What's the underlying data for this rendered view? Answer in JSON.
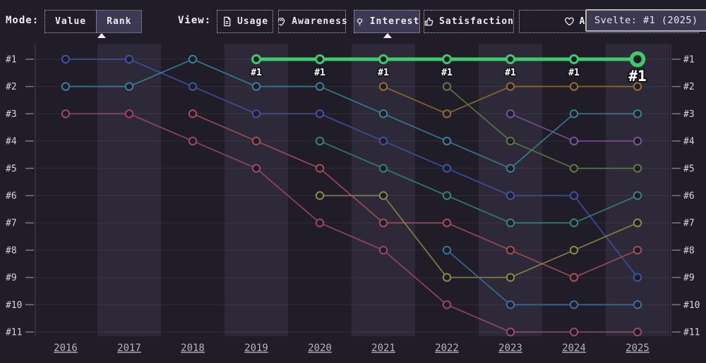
{
  "toolbar": {
    "mode_label": "Mode:",
    "modes": [
      {
        "label": "Value",
        "selected": false
      },
      {
        "label": "Rank",
        "selected": true
      }
    ],
    "view_label": "View:",
    "views": [
      {
        "label": "Usage",
        "icon": "document-icon",
        "selected": false
      },
      {
        "label": "Awareness",
        "icon": "ear-icon",
        "selected": false
      },
      {
        "label": "Interest",
        "icon": "bulb-icon",
        "selected": true
      },
      {
        "label": "Satisfaction",
        "icon": "thumbs-up-icon",
        "selected": false
      },
      {
        "label": "Appreciation",
        "icon": "heart-icon",
        "selected": false
      }
    ]
  },
  "tooltip": {
    "text": "Svelte: #1 (2025)"
  },
  "colors": {
    "background": "#201c28",
    "band": "rgba(165,160,210,0.10)",
    "gridline": "rgba(255,255,255,0.07)",
    "axis_line": "rgba(255,255,255,0.17)",
    "tick": "#7b7888",
    "rank_label": "#d6d4e0",
    "year_label": "#b6b3c2",
    "highlight": "#3ecb6e",
    "point_label": "#ffffff"
  },
  "chart_data": {
    "type": "line",
    "mode": "rank-bump-chart",
    "x_labels": [
      "2016",
      "2017",
      "2018",
      "2019",
      "2020",
      "2021",
      "2022",
      "2023",
      "2024",
      "2025"
    ],
    "y_labels": [
      "#1",
      "#2",
      "#3",
      "#4",
      "#5",
      "#6",
      "#7",
      "#8",
      "#9",
      "#10",
      "#11"
    ],
    "grid": true,
    "legend": false,
    "highlight_series": {
      "name": "Svelte",
      "color": "#3ecb6e",
      "point_label": "#1",
      "points": [
        [
          2019,
          1
        ],
        [
          2020,
          1
        ],
        [
          2021,
          1
        ],
        [
          2022,
          1
        ],
        [
          2023,
          1
        ],
        [
          2024,
          1
        ],
        [
          2025,
          1
        ]
      ]
    },
    "series": [
      {
        "id": "indigo",
        "color": "#4053a3",
        "points": [
          [
            2016,
            1
          ],
          [
            2017,
            1
          ],
          [
            2018,
            2
          ],
          [
            2019,
            3
          ],
          [
            2020,
            3
          ],
          [
            2021,
            4
          ],
          [
            2022,
            5
          ],
          [
            2023,
            6
          ],
          [
            2024,
            6
          ],
          [
            2025,
            9
          ]
        ]
      },
      {
        "id": "teal",
        "color": "#3a8196",
        "points": [
          [
            2016,
            2
          ],
          [
            2017,
            2
          ],
          [
            2018,
            1
          ],
          [
            2019,
            2
          ],
          [
            2020,
            2
          ],
          [
            2021,
            3
          ],
          [
            2022,
            4
          ],
          [
            2023,
            5
          ],
          [
            2024,
            3
          ],
          [
            2025,
            3
          ]
        ]
      },
      {
        "id": "maroon",
        "color": "#9a4a66",
        "points": [
          [
            2016,
            3
          ],
          [
            2017,
            3
          ],
          [
            2018,
            4
          ],
          [
            2019,
            5
          ],
          [
            2020,
            7
          ],
          [
            2021,
            8
          ],
          [
            2022,
            10
          ],
          [
            2023,
            11
          ],
          [
            2024,
            11
          ],
          [
            2025,
            11
          ]
        ]
      },
      {
        "id": "crimson",
        "color": "#a4505c",
        "points": [
          [
            2018,
            3
          ],
          [
            2019,
            4
          ],
          [
            2020,
            5
          ],
          [
            2021,
            7
          ],
          [
            2022,
            7
          ],
          [
            2023,
            8
          ],
          [
            2024,
            9
          ],
          [
            2025,
            8
          ]
        ]
      },
      {
        "id": "seagreen",
        "color": "#35857a",
        "points": [
          [
            2020,
            4
          ],
          [
            2021,
            5
          ],
          [
            2022,
            6
          ],
          [
            2023,
            7
          ],
          [
            2024,
            7
          ],
          [
            2025,
            6
          ]
        ]
      },
      {
        "id": "olive",
        "color": "#8e8a45",
        "points": [
          [
            2020,
            6
          ],
          [
            2021,
            6
          ],
          [
            2022,
            9
          ],
          [
            2023,
            9
          ],
          [
            2024,
            8
          ],
          [
            2025,
            7
          ]
        ]
      },
      {
        "id": "amber",
        "color": "#926f2e",
        "points": [
          [
            2021,
            2
          ],
          [
            2022,
            3
          ],
          [
            2023,
            2
          ],
          [
            2024,
            2
          ],
          [
            2025,
            2
          ]
        ]
      },
      {
        "id": "darkgreen",
        "color": "#5d7c44",
        "points": [
          [
            2022,
            2
          ],
          [
            2023,
            4
          ],
          [
            2024,
            5
          ],
          [
            2025,
            5
          ]
        ]
      },
      {
        "id": "steelblue",
        "color": "#3e6f9f",
        "points": [
          [
            2022,
            8
          ],
          [
            2023,
            10
          ],
          [
            2024,
            10
          ],
          [
            2025,
            10
          ]
        ]
      },
      {
        "id": "purple",
        "color": "#7d5398",
        "points": [
          [
            2023,
            3
          ],
          [
            2024,
            4
          ],
          [
            2025,
            4
          ]
        ]
      }
    ]
  }
}
